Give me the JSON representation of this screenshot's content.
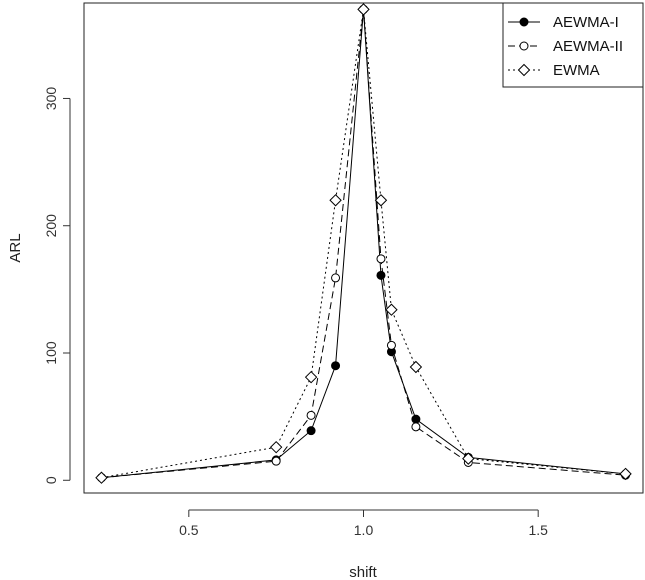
{
  "chart_data": {
    "type": "line",
    "xlabel": "shift",
    "ylabel": "ARL",
    "xlim": [
      0.2,
      1.8
    ],
    "ylim": [
      -10,
      375
    ],
    "x_ticks": [
      0.5,
      1.0,
      1.5
    ],
    "x_tick_labels": [
      "0.5",
      "1.0",
      "1.5"
    ],
    "y_ticks": [
      0,
      100,
      200,
      300
    ],
    "y_tick_labels": [
      "0",
      "100",
      "200",
      "300"
    ],
    "grid": false,
    "legend_position": "top-right",
    "series": [
      {
        "name": "AEWMA-I",
        "line_style": "solid",
        "marker": "filled-circle",
        "x": [
          0.25,
          0.75,
          0.85,
          0.92,
          1.0,
          1.05,
          1.08,
          1.15,
          1.3,
          1.75
        ],
        "y": [
          2,
          16,
          39,
          90,
          370,
          161,
          101,
          48,
          18,
          5
        ]
      },
      {
        "name": "AEWMA-II",
        "line_style": "dashed",
        "marker": "open-circle",
        "x": [
          0.25,
          0.75,
          0.85,
          0.92,
          1.0,
          1.05,
          1.08,
          1.15,
          1.3,
          1.75
        ],
        "y": [
          2,
          15,
          51,
          159,
          370,
          174,
          106,
          42,
          14,
          4
        ]
      },
      {
        "name": "EWMA",
        "line_style": "dotted",
        "marker": "open-diamond",
        "x": [
          0.25,
          0.75,
          0.85,
          0.92,
          1.0,
          1.05,
          1.08,
          1.15,
          1.3,
          1.75
        ],
        "y": [
          2,
          26,
          81,
          220,
          370,
          220,
          134,
          89,
          17,
          5
        ]
      }
    ]
  }
}
